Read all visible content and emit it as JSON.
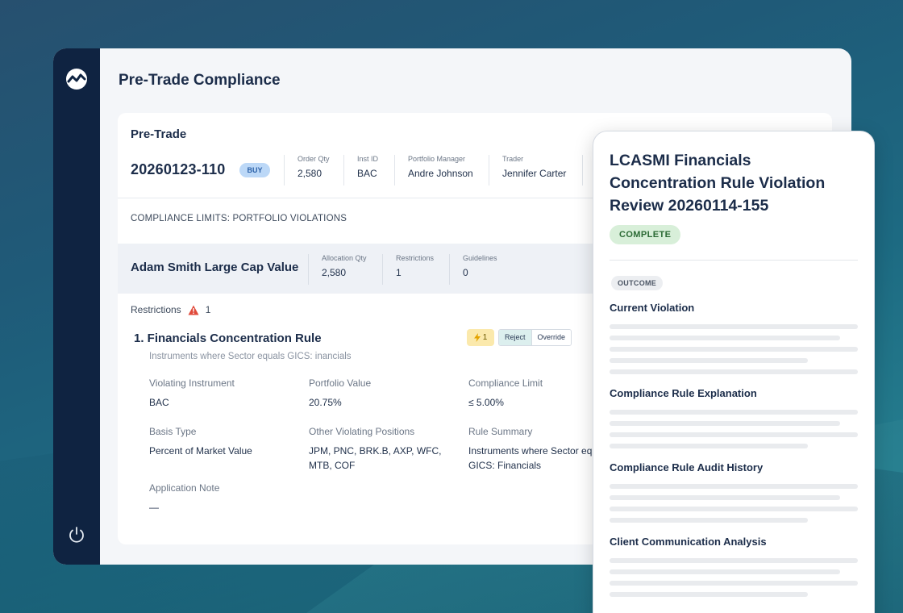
{
  "page_title": "Pre-Trade Compliance",
  "card": {
    "label": "Pre-Trade",
    "order_id": "20260123-110",
    "side": "BUY",
    "meta": [
      {
        "key": "Order Qty",
        "value": "2,580"
      },
      {
        "key": "Inst ID",
        "value": "BAC"
      },
      {
        "key": "Portfolio Manager",
        "value": "Andre Johnson"
      },
      {
        "key": "Trader",
        "value": "Jennifer Carter"
      }
    ],
    "limits_heading": "COMPLIANCE LIMITS: PORTFOLIO VIOLATIONS"
  },
  "portfolio": {
    "name": "Adam Smith Large Cap Value",
    "meta": [
      {
        "key": "Allocation Qty",
        "value": "2,580"
      },
      {
        "key": "Restrictions",
        "value": "1"
      },
      {
        "key": "Guidelines",
        "value": "0"
      }
    ]
  },
  "restrictions": {
    "label": "Restrictions",
    "count": "1",
    "rule": {
      "title": "1. Financials Concentration Rule",
      "subtitle": "Instruments where Sector equals GICS: inancials",
      "bolt_count": "1",
      "reject_label": "Reject",
      "override_label": "Override",
      "fields": {
        "violating_instrument": {
          "key": "Violating Instrument",
          "value": "BAC"
        },
        "portfolio_value": {
          "key": "Portfolio Value",
          "value": "20.75%"
        },
        "compliance_limit": {
          "key": "Compliance Limit",
          "value": "≤ 5.00%"
        },
        "basis_type": {
          "key": "Basis Type",
          "value": "Percent of Market Value"
        },
        "other_positions": {
          "key": "Other Violating Positions",
          "value": "JPM, PNC, BRK.B, AXP, WFC, MTB, COF"
        },
        "rule_summary": {
          "key": "Rule Summary",
          "value": "Instruments where Sector equals GICS: Financials"
        },
        "application_note": {
          "key": "Application Note",
          "value": "—"
        }
      }
    }
  },
  "panel": {
    "title": "LCASMI Financials Concentration Rule Violation Review 20260114-155",
    "status": "COMPLETE",
    "outcome_label": "OUTCOME",
    "sections": [
      "Current Violation",
      "Compliance Rule Explanation",
      "Compliance Rule Audit History",
      "Client Communication Analysis"
    ]
  },
  "colors": {
    "sidebar": "#0f2341",
    "accent": "#bcd8f7",
    "complete": "#d8efd9"
  },
  "icons": {
    "logo": "wave-logo-icon",
    "power": "power-icon",
    "warning": "warning-icon",
    "bolt": "lightning-icon"
  }
}
